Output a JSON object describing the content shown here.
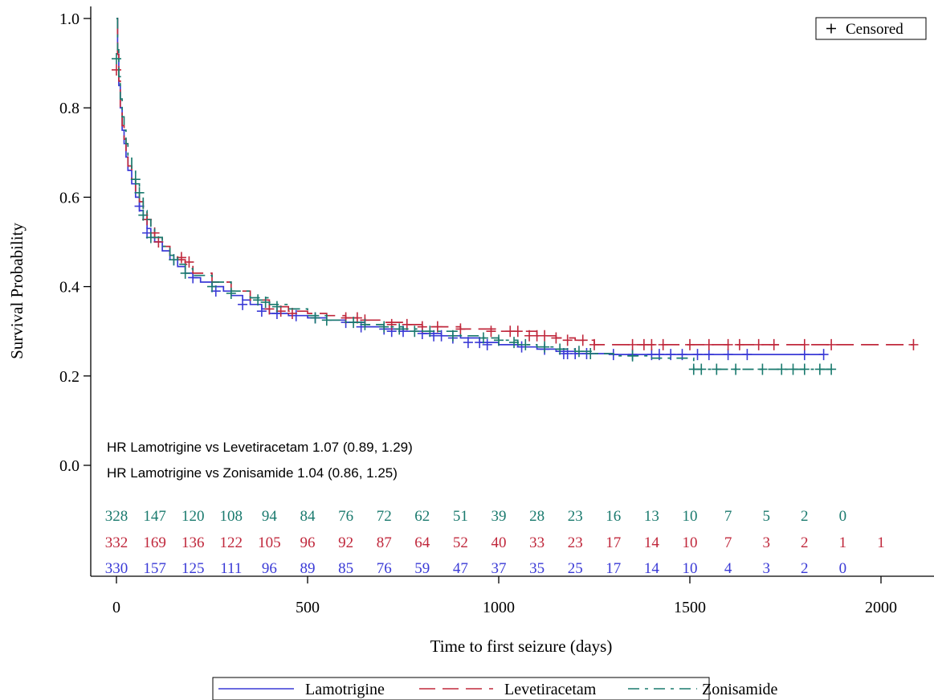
{
  "chart_data": {
    "type": "line",
    "xlabel": "Time to first seizure (days)",
    "ylabel": "Survival Probability",
    "xlim": [
      -25,
      2150
    ],
    "ylim": [
      -0.05,
      1.02
    ],
    "x_ticks": [
      0,
      500,
      1000,
      1500,
      2000
    ],
    "y_ticks": [
      0.0,
      0.2,
      0.4,
      0.6,
      0.8,
      1.0
    ],
    "grid": false,
    "censored_legend": "Censored",
    "annotations": [
      "HR Lamotrigine vs Levetiracetam 1.07 (0.89, 1.29)",
      "HR Lamotrigine vs Zonisamide 1.04 (0.86, 1.25)"
    ],
    "at_risk": {
      "times": [
        0,
        100,
        200,
        300,
        400,
        500,
        600,
        700,
        800,
        900,
        1000,
        1100,
        1200,
        1300,
        1400,
        1500,
        1600,
        1700,
        1800,
        1900,
        2000
      ],
      "rows": [
        {
          "series": "Zonisamide",
          "color": "#1a7a6e",
          "counts": [
            "328",
            "147",
            "120",
            "108",
            "94",
            "84",
            "76",
            "72",
            "62",
            "51",
            "39",
            "28",
            "23",
            "16",
            "13",
            "10",
            "7",
            "5",
            "2",
            "0"
          ]
        },
        {
          "series": "Levetiracetam",
          "color": "#c0283c",
          "counts": [
            "332",
            "169",
            "136",
            "122",
            "105",
            "96",
            "92",
            "87",
            "64",
            "52",
            "40",
            "33",
            "23",
            "17",
            "14",
            "10",
            "7",
            "3",
            "2",
            "1",
            "1"
          ]
        },
        {
          "series": "Lamotrigine",
          "color": "#3a3ad6",
          "counts": [
            "330",
            "157",
            "125",
            "111",
            "96",
            "89",
            "85",
            "76",
            "59",
            "47",
            "37",
            "35",
            "25",
            "17",
            "14",
            "10",
            "4",
            "3",
            "2",
            "0"
          ]
        }
      ]
    },
    "series": [
      {
        "name": "Lamotrigine",
        "color": "#3a3ad6",
        "dash": "solid",
        "x": [
          0,
          3,
          6,
          10,
          15,
          20,
          25,
          30,
          40,
          50,
          60,
          70,
          80,
          90,
          100,
          120,
          140,
          160,
          180,
          200,
          220,
          250,
          280,
          300,
          330,
          350,
          380,
          400,
          450,
          500,
          550,
          600,
          650,
          700,
          750,
          800,
          850,
          900,
          950,
          1000,
          1050,
          1100,
          1150,
          1200,
          1250,
          1300,
          1400,
          1500,
          1600,
          1700,
          1800,
          1850
        ],
        "y": [
          1.0,
          0.92,
          0.85,
          0.8,
          0.75,
          0.72,
          0.69,
          0.66,
          0.63,
          0.6,
          0.57,
          0.55,
          0.53,
          0.51,
          0.5,
          0.48,
          0.46,
          0.445,
          0.43,
          0.42,
          0.41,
          0.4,
          0.39,
          0.38,
          0.37,
          0.36,
          0.35,
          0.34,
          0.335,
          0.33,
          0.325,
          0.32,
          0.31,
          0.305,
          0.3,
          0.295,
          0.29,
          0.285,
          0.275,
          0.27,
          0.265,
          0.26,
          0.255,
          0.25,
          0.25,
          0.248,
          0.248,
          0.248,
          0.248,
          0.248,
          0.248,
          0.248
        ],
        "censored_x": [
          60,
          80,
          150,
          200,
          260,
          330,
          380,
          420,
          470,
          520,
          600,
          640,
          700,
          720,
          750,
          800,
          830,
          850,
          880,
          920,
          950,
          970,
          1060,
          1120,
          1170,
          1180,
          1200,
          1230,
          1300,
          1350,
          1400,
          1420,
          1450,
          1480,
          1520,
          1550,
          1600,
          1650,
          1800,
          1850
        ],
        "censored_y": [
          0.58,
          0.52,
          0.46,
          0.42,
          0.39,
          0.36,
          0.345,
          0.34,
          0.335,
          0.33,
          0.32,
          0.31,
          0.305,
          0.3,
          0.3,
          0.295,
          0.29,
          0.29,
          0.285,
          0.275,
          0.275,
          0.27,
          0.265,
          0.26,
          0.25,
          0.25,
          0.25,
          0.25,
          0.248,
          0.248,
          0.248,
          0.248,
          0.248,
          0.248,
          0.248,
          0.248,
          0.248,
          0.248,
          0.248,
          0.248
        ]
      },
      {
        "name": "Levetiracetam",
        "color": "#c0283c",
        "dash": "long",
        "x": [
          0,
          3,
          6,
          10,
          15,
          20,
          25,
          30,
          40,
          50,
          60,
          70,
          80,
          90,
          100,
          120,
          140,
          160,
          180,
          200,
          250,
          300,
          350,
          400,
          450,
          500,
          550,
          600,
          650,
          700,
          750,
          800,
          850,
          900,
          950,
          1000,
          1050,
          1100,
          1150,
          1200,
          1250,
          1300,
          1400,
          1500,
          1600,
          1700,
          1800,
          1900,
          2000,
          2085
        ],
        "y": [
          1.0,
          0.92,
          0.86,
          0.8,
          0.76,
          0.73,
          0.7,
          0.67,
          0.64,
          0.61,
          0.59,
          0.57,
          0.55,
          0.53,
          0.51,
          0.49,
          0.47,
          0.46,
          0.45,
          0.43,
          0.41,
          0.39,
          0.37,
          0.355,
          0.345,
          0.34,
          0.335,
          0.33,
          0.325,
          0.32,
          0.315,
          0.31,
          0.31,
          0.305,
          0.305,
          0.3,
          0.3,
          0.29,
          0.285,
          0.28,
          0.27,
          0.27,
          0.27,
          0.27,
          0.27,
          0.27,
          0.27,
          0.27,
          0.27,
          0.27
        ],
        "censored_x": [
          0,
          80,
          100,
          110,
          170,
          190,
          400,
          430,
          460,
          600,
          630,
          650,
          720,
          760,
          800,
          840,
          900,
          980,
          1030,
          1050,
          1080,
          1100,
          1120,
          1150,
          1180,
          1220,
          1250,
          1350,
          1380,
          1400,
          1430,
          1500,
          1550,
          1600,
          1630,
          1680,
          1720,
          1800,
          1870,
          2085
        ],
        "censored_y": [
          0.885,
          0.55,
          0.52,
          0.5,
          0.465,
          0.455,
          0.35,
          0.345,
          0.34,
          0.33,
          0.33,
          0.325,
          0.315,
          0.315,
          0.31,
          0.31,
          0.305,
          0.3,
          0.3,
          0.3,
          0.29,
          0.29,
          0.29,
          0.285,
          0.28,
          0.28,
          0.27,
          0.27,
          0.27,
          0.27,
          0.27,
          0.27,
          0.27,
          0.27,
          0.27,
          0.27,
          0.27,
          0.27,
          0.27,
          0.27
        ]
      },
      {
        "name": "Zonisamide",
        "color": "#1a7a6e",
        "dash": "dashdot",
        "x": [
          0,
          3,
          6,
          10,
          15,
          20,
          25,
          30,
          40,
          50,
          60,
          70,
          80,
          90,
          100,
          120,
          140,
          160,
          180,
          200,
          250,
          300,
          350,
          400,
          450,
          500,
          550,
          600,
          650,
          700,
          750,
          800,
          850,
          900,
          950,
          1000,
          1050,
          1100,
          1150,
          1200,
          1250,
          1300,
          1400,
          1500,
          1510,
          1600,
          1700,
          1800,
          1870
        ],
        "y": [
          1.0,
          0.93,
          0.87,
          0.82,
          0.78,
          0.75,
          0.72,
          0.69,
          0.66,
          0.63,
          0.6,
          0.57,
          0.55,
          0.53,
          0.51,
          0.49,
          0.47,
          0.45,
          0.44,
          0.425,
          0.41,
          0.39,
          0.375,
          0.36,
          0.35,
          0.335,
          0.325,
          0.32,
          0.315,
          0.31,
          0.305,
          0.3,
          0.3,
          0.29,
          0.285,
          0.28,
          0.27,
          0.265,
          0.26,
          0.255,
          0.25,
          0.245,
          0.24,
          0.24,
          0.215,
          0.215,
          0.215,
          0.215,
          0.215
        ],
        "censored_x": [
          0,
          50,
          60,
          70,
          90,
          150,
          180,
          250,
          300,
          370,
          390,
          420,
          520,
          550,
          620,
          650,
          700,
          740,
          780,
          820,
          880,
          960,
          1000,
          1040,
          1070,
          1120,
          1160,
          1210,
          1240,
          1350,
          1510,
          1530,
          1570,
          1620,
          1690,
          1740,
          1770,
          1800,
          1840,
          1870
        ],
        "censored_y": [
          0.91,
          0.64,
          0.61,
          0.56,
          0.51,
          0.46,
          0.43,
          0.4,
          0.385,
          0.37,
          0.365,
          0.355,
          0.33,
          0.325,
          0.32,
          0.315,
          0.31,
          0.305,
          0.3,
          0.3,
          0.29,
          0.285,
          0.28,
          0.275,
          0.27,
          0.265,
          0.26,
          0.255,
          0.25,
          0.245,
          0.215,
          0.215,
          0.215,
          0.215,
          0.215,
          0.215,
          0.215,
          0.215,
          0.215,
          0.215
        ]
      }
    ]
  }
}
